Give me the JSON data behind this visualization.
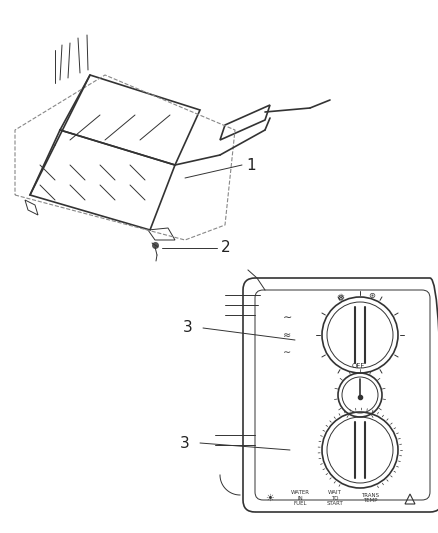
{
  "bg_color": "#ffffff",
  "line_color": "#333333",
  "label_color": "#222222",
  "label_1": "1",
  "label_2": "2",
  "label_3": "3",
  "fig_width": 4.38,
  "fig_height": 5.33,
  "dpi": 100
}
